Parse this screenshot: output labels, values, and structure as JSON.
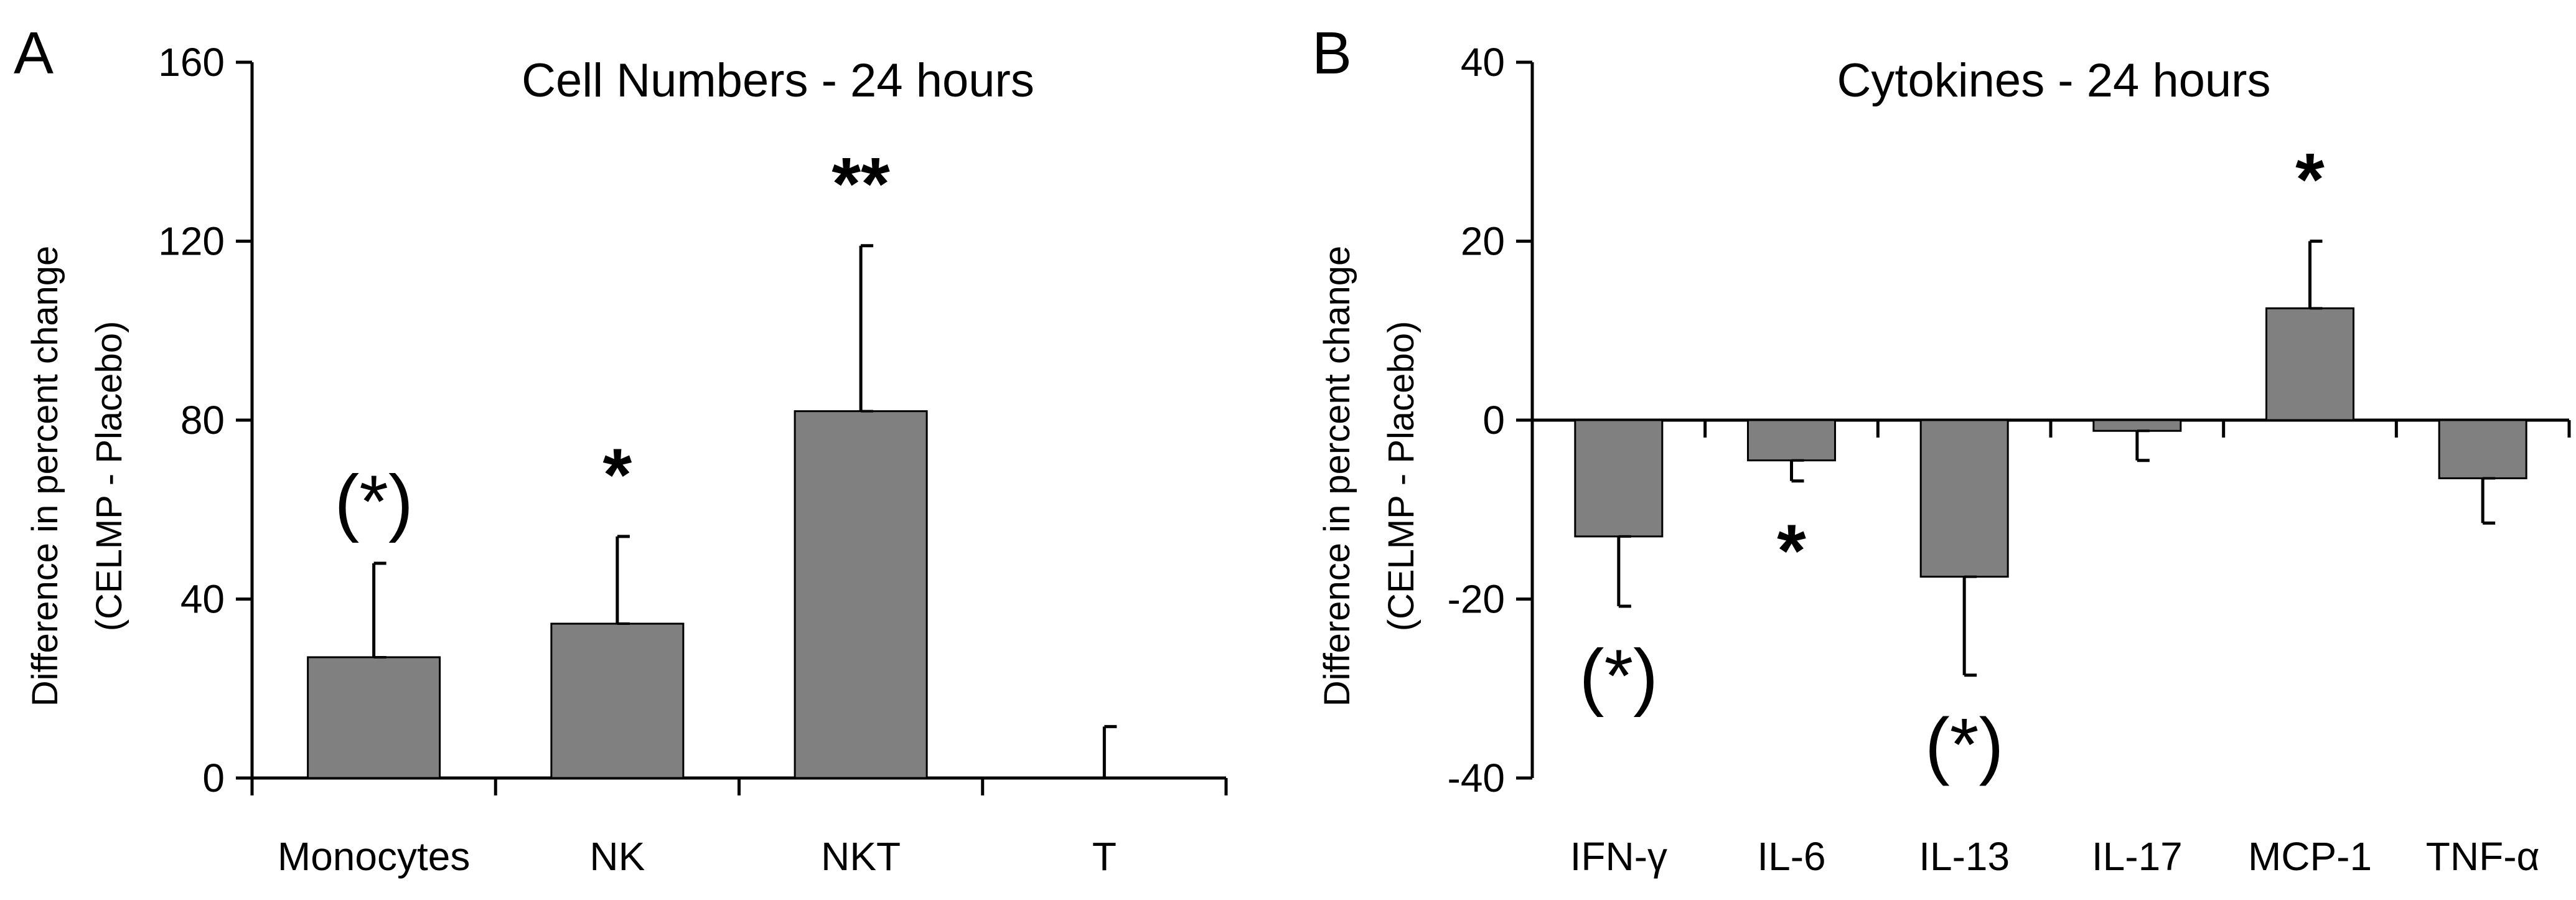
{
  "chart_data": [
    {
      "panel": "A",
      "type": "bar",
      "title": "Cell Numbers - 24 hours",
      "ylabel": "Difference in percent change",
      "ylabel2": "(CELMP - Placebo)",
      "xlabel": "",
      "ylim": [
        0,
        160
      ],
      "yticks": [
        "0",
        "40",
        "80",
        "120",
        "160"
      ],
      "ytick_values": [
        0,
        40,
        80,
        120,
        160
      ],
      "categories": [
        "Monocytes",
        "NK",
        "NKT",
        "T"
      ],
      "values": [
        27,
        34.5,
        82,
        0
      ],
      "error_upper": [
        48,
        54,
        119,
        11.5
      ],
      "annotations": [
        "(*)",
        "*",
        "**",
        ""
      ],
      "bar_color": "#808080",
      "grid": false
    },
    {
      "panel": "B",
      "type": "bar",
      "title": "Cytokines - 24 hours",
      "ylabel": "Difference in percent change",
      "ylabel2": "(CELMP - Placebo)",
      "xlabel": "",
      "ylim": [
        -40,
        40
      ],
      "yticks": [
        "-40",
        "-20",
        "0",
        "20",
        "40"
      ],
      "ytick_values": [
        -40,
        -20,
        0,
        20,
        40
      ],
      "categories": [
        "IFN-γ",
        "IL-6",
        "IL-13",
        "IL-17",
        "MCP-1",
        "TNF-α"
      ],
      "values": [
        -13,
        -4.5,
        -17.5,
        -1.2,
        12.5,
        -6.5
      ],
      "error_end": [
        -20.8,
        -6.8,
        -28.5,
        -4.5,
        20,
        -11.5
      ],
      "annotations": [
        "(*)",
        "*",
        "(*)",
        "",
        "*",
        ""
      ],
      "bar_color": "#808080",
      "grid": false
    }
  ]
}
